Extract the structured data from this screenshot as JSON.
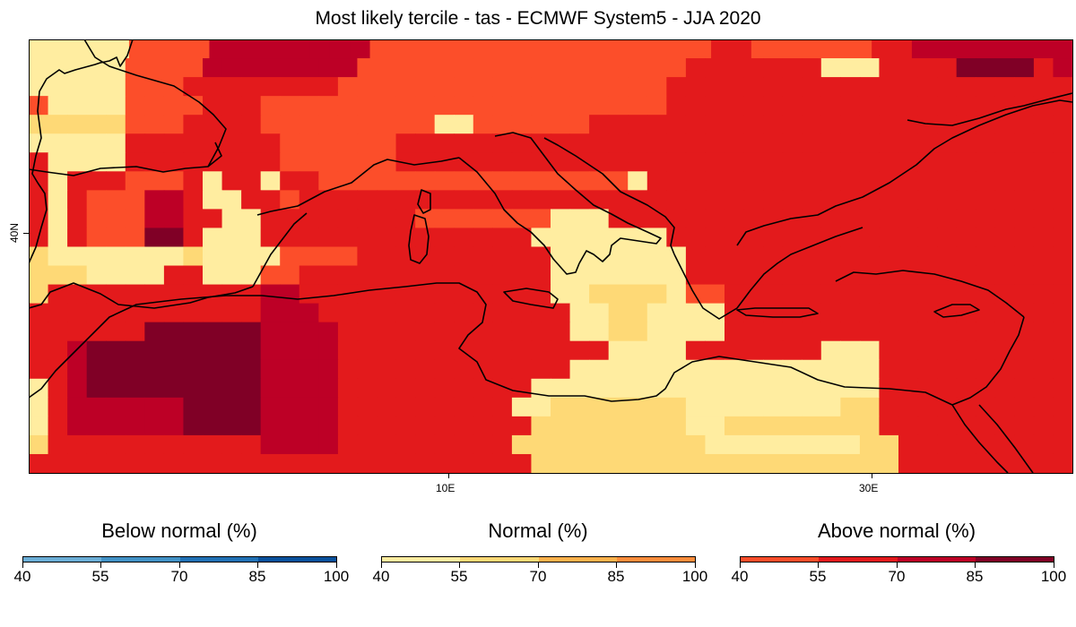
{
  "title": "Most likely tercile - tas - ECMWF System5 - JJA 2020",
  "map": {
    "y_tick_label": "40N",
    "x_tick_labels": [
      "10E",
      "30E"
    ],
    "categories": {
      "N": "#ffeda0",
      "M": "#fed976",
      "O": "#fc4e2a",
      "R": "#e31a1c",
      "C": "#bd0026",
      "D": "#800026"
    },
    "grid_rows": [
      "NNNNNOOOOCCCCCCCCOOOOOOOOOOOOOOOOORROOOOOORRCCCCCCCC",
      "NNNNNOOOOCCCCCCCCOOOOOOOOOOOOOOOOORRRRRRRNNNRRRRDDDDRC",
      "NNNNNOOORRRRRRRROOOOOOOOOOOOOOOOORRRRRRRRRRRRRRRRRRRRR",
      "ONNNNOOOORRROOOOOOOOOOOOOOOOOOOOORRRRRRRRRRRRRRRRRRRRR",
      "MMMMMOOORRRROOOOOOOOONNOOOOOORRRRRRRRRRRRRRRRRRRRRRRRR",
      "NNNNNRRRRRRRROOOOOORRRRRRRRRRRRRRRRRRRRRRRRRRRRRRRRRRR",
      "RNNNNRRRRRRRROOOOOORRRRRRRRRRRRRRRRRRRRRRRRRRRRRRRRRRR",
      "RNRRROOORNRRNRROOOOOOOOOOOOOOOONRRRRRRRRRRRRRRRRRRRRRR",
      "RNROOOCCRNNRRORRRRRRRRRRRRRRRRRRRRRRRRRRRRRRRRRRRRRRRR",
      "RNROOOCCRRNNRRRRRRRROOOOOOONNNRRRRRRRRRRRRRRRRRRRRRRRR",
      "RNROOODDRNNNRRRRRRRRRRRRRRNNNNNNNRRRRRRRRRRRRRRRRRRRRR",
      "MNNNNNNNMNNNNOOOORRRRRRRRRRNNNNNNNRRRRRRRRRRRRRRRRRRRR",
      "MMMNNNNRRNNNOORRRRRRRRRRRRRNNNNNNNRRRRRRRRRRRRRRRRRRRR",
      "MRRRRRRRRRRRCCRRRRRRRRRRRRRNNMMMMNOORRRRRRRRRRRRRRRRRR",
      "RRRRRRRRRRRRCCCRRRRRRRRRRRRRNNMMNNNNRRRRRRRRRRRRRRRRRR",
      "RRRRRRDDDDDDCCCCRRRRRRRRRRRRNNMMNNNNRRRRRRRRRRRRRRRRRR",
      "RRCDDDDDDDDDCCCCRRRRRRRRRRRRRRNNNNRRRRRRRNNNRRRRRRRRRR",
      "RRCDDDDDDDDDCCCCRRRRRRRRRRRRNNNNNNNNNNNNNNNNRRRRRRRRRR",
      "NRCDDDDDDDDDCCCCRRRRRRRRRRNNNNNNNNNNNNNNNNNNRRRRRRRRRR",
      "NRCCCCCCDDDDCCCCRRRRRRRRRNNMMMMMMMNNNNNNNNMMRRRRRRRRRR",
      "NRCCCCCCDDDDCCCCRRRRRRRRRRMMMMMMMMNNMMMMMMMMRRRRRRRRRR",
      "MRRRRRRRRRRRCCCCRRRRRRRRRMMMMMMMMMMNNNNNNNNMMRRRRRRRRR",
      "RRRRRRRRRRRRRRRRRRRRRRRRRRMMMMMMMMMMMMMMMMMMMRRRRRRRRR"
    ]
  },
  "legends": [
    {
      "title": "Below normal (%)",
      "colors": [
        "#6baed6",
        "#4292c6",
        "#2171b5",
        "#08519c"
      ],
      "ticks": [
        "40",
        "55",
        "70",
        "85",
        "100"
      ]
    },
    {
      "title": "Normal (%)",
      "colors": [
        "#ffeda0",
        "#fed976",
        "#feb24c",
        "#fd8d3c"
      ],
      "ticks": [
        "40",
        "55",
        "70",
        "85",
        "100"
      ]
    },
    {
      "title": "Above normal (%)",
      "colors": [
        "#fc4e2a",
        "#e31a1c",
        "#bd0026",
        "#800026"
      ],
      "ticks": [
        "40",
        "55",
        "70",
        "85",
        "100"
      ]
    }
  ]
}
